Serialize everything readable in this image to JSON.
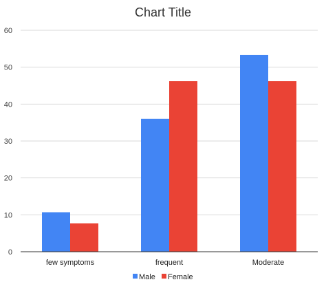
{
  "chart_data": {
    "type": "bar",
    "title": "Chart Title",
    "xlabel": "",
    "ylabel": "",
    "categories": [
      "few symptoms",
      "frequent",
      "Moderate"
    ],
    "series": [
      {
        "name": "Male",
        "values": [
          10.7,
          36.0,
          53.3
        ],
        "color": "#4285f4"
      },
      {
        "name": "Female",
        "values": [
          7.7,
          46.2,
          46.2
        ],
        "color": "#ea4335"
      }
    ],
    "ylim": [
      0,
      60
    ],
    "yticks": [
      "0",
      "10",
      "20",
      "30",
      "40",
      "50",
      "60"
    ],
    "grid": true,
    "legend_position": "bottom"
  }
}
